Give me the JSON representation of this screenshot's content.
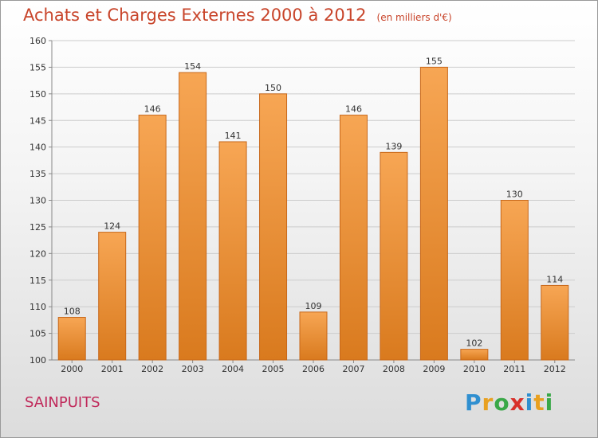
{
  "header": {
    "title": "Achats et Charges Externes 2000 à 2012",
    "subtitle": "(en milliers d'€)"
  },
  "footer": {
    "city": "SAINPUITS",
    "logo_letters": [
      "P",
      "r",
      "o",
      "x",
      "i",
      "t",
      "i"
    ],
    "logo_colors": [
      "#2f8fd0",
      "#e8a020",
      "#3aa848",
      "#d8302a",
      "#2f8fd0",
      "#e8a020",
      "#3aa848"
    ]
  },
  "colors": {
    "bar_top": "#f7a654",
    "bar_bottom": "#d97a1e",
    "bar_edge": "#c8681a",
    "grid": "#cccccc",
    "axis_text": "#333333"
  },
  "chart_data": {
    "type": "bar",
    "title": "Achats et Charges Externes 2000 à 2012",
    "categories": [
      "2000",
      "2001",
      "2002",
      "2003",
      "2004",
      "2005",
      "2006",
      "2007",
      "2008",
      "2009",
      "2010",
      "2011",
      "2012"
    ],
    "values": [
      108,
      124,
      146,
      154,
      141,
      150,
      109,
      146,
      139,
      155,
      102,
      130,
      114
    ],
    "ylim": [
      100,
      160
    ],
    "yticks": [
      100,
      105,
      110,
      115,
      120,
      125,
      130,
      135,
      140,
      145,
      150,
      155,
      160
    ],
    "grid": true,
    "data_labels": true
  }
}
